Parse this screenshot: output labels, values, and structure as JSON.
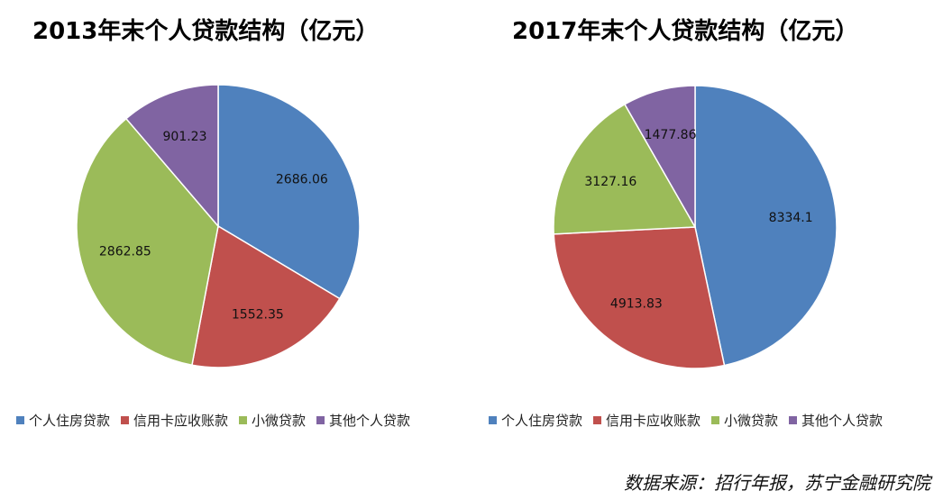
{
  "chart_data": [
    {
      "type": "pie",
      "title": "2013年末个人贷款结构（亿元）",
      "categories": [
        "个人住房贷款",
        "信用卡应收账款",
        "小微贷款",
        "其他个人贷款"
      ],
      "values": [
        2686.06,
        1552.35,
        2862.85,
        901.23
      ],
      "value_labels": [
        "2686.06",
        "1552.35",
        "2862.85",
        "901.23"
      ],
      "colors": [
        "#4F81BD",
        "#C0504D",
        "#9BBB59",
        "#8064A2"
      ],
      "legend": "bottom"
    },
    {
      "type": "pie",
      "title": "2017年末个人贷款结构（亿元）",
      "categories": [
        "个人住房贷款",
        "信用卡应收账款",
        "小微贷款",
        "其他个人贷款"
      ],
      "values": [
        8334.1,
        4913.83,
        3127.16,
        1477.86
      ],
      "value_labels": [
        "8334.1",
        "4913.83",
        "3127.16",
        "1477.86"
      ],
      "colors": [
        "#4F81BD",
        "#C0504D",
        "#9BBB59",
        "#8064A2"
      ],
      "legend": "bottom"
    }
  ],
  "source_note": "数据来源：招行年报，苏宁金融研究院"
}
